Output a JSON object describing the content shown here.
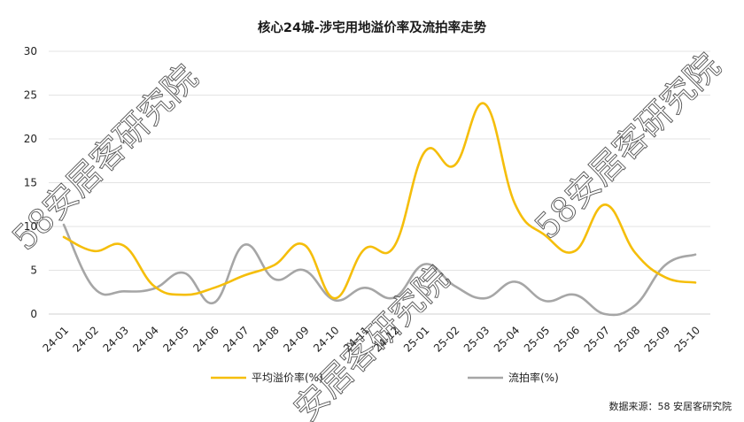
{
  "chart_data": {
    "type": "line",
    "title": "核心24城-涉宅用地溢价率及流拍率走势",
    "categories": [
      "24-01",
      "24-02",
      "24-03",
      "24-04",
      "24-05",
      "24-06",
      "24-07",
      "24-08",
      "24-09",
      "24-10",
      "24-11",
      "24-12",
      "25-01",
      "25-02",
      "25-03",
      "25-04",
      "25-05",
      "25-06",
      "25-07",
      "25-08",
      "25-09",
      "25-10"
    ],
    "ylim": [
      0,
      30
    ],
    "yticks": [
      0,
      5,
      10,
      15,
      20,
      25,
      30
    ],
    "grid": true,
    "legend_position": "bottom",
    "series": [
      {
        "name": "平均溢价率(%)",
        "color": "#F5BE0B",
        "values": [
          8.8,
          7.2,
          7.8,
          3.2,
          2.2,
          3.0,
          4.4,
          5.6,
          7.9,
          1.8,
          7.4,
          7.8,
          18.5,
          17.0,
          24.0,
          12.6,
          9.0,
          7.2,
          12.5,
          7.0,
          4.2,
          3.6
        ]
      },
      {
        "name": "流拍率(%)",
        "color": "#A6A6A6",
        "values": [
          10.2,
          3.0,
          2.6,
          2.9,
          4.7,
          1.3,
          7.9,
          4.0,
          5.0,
          1.6,
          3.0,
          1.9,
          5.7,
          3.2,
          1.8,
          3.7,
          1.5,
          2.2,
          0.0,
          1.0,
          5.6,
          6.8
        ]
      }
    ],
    "source": "数据来源：58 安居客研究院"
  },
  "watermarks": [
    "58安居客研究院",
    "58安居客研究院",
    "安居客研究院"
  ]
}
